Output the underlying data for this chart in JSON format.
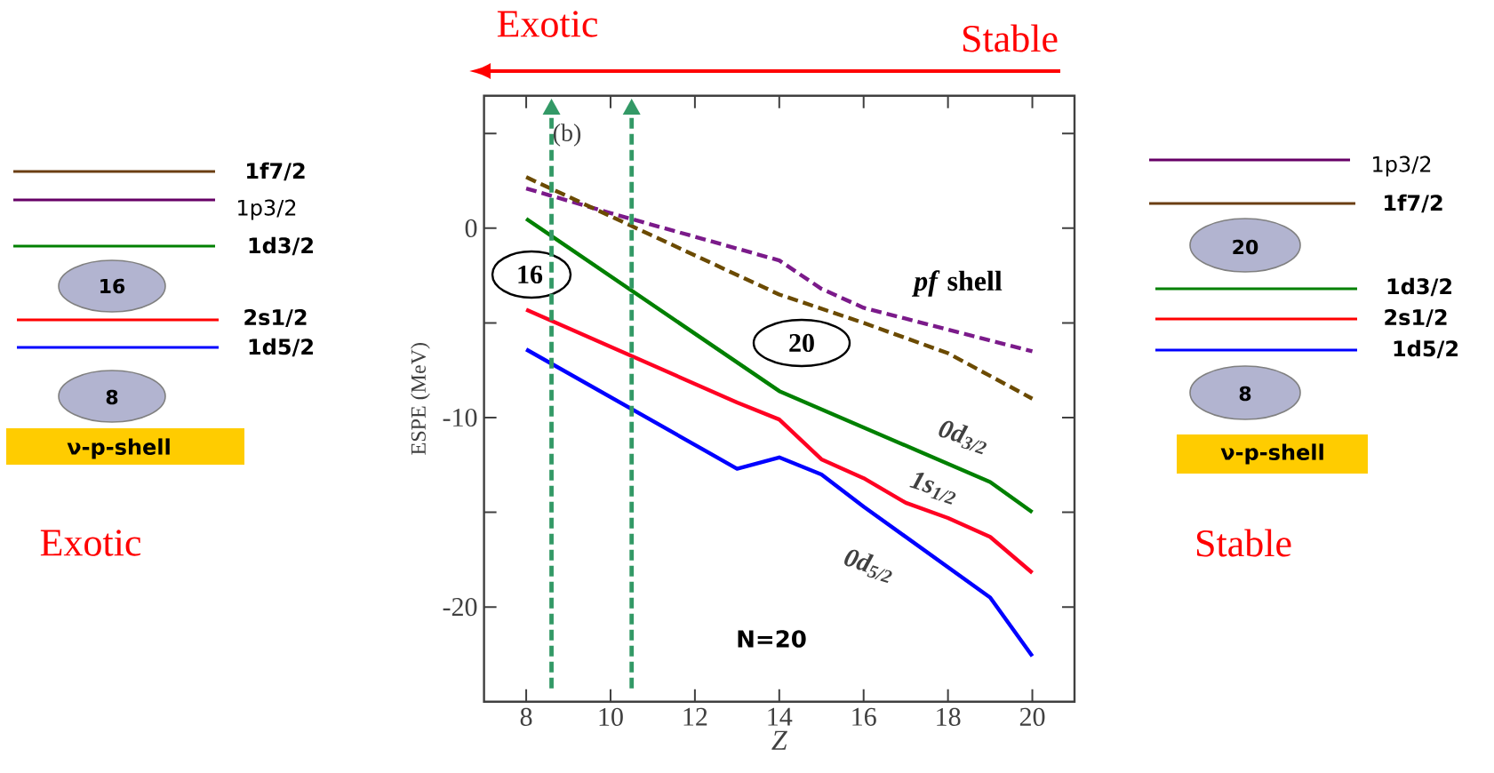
{
  "chart_data": {
    "type": "line",
    "xlabel": "Z",
    "ylabel": "ESPE (MeV)",
    "xlim": [
      7,
      21
    ],
    "ylim": [
      -25,
      7
    ],
    "xticks": [
      8,
      10,
      12,
      14,
      16,
      18,
      20
    ],
    "yticks": [
      {
        "value": 5,
        "label": null
      },
      0,
      {
        "value": -5,
        "label": null
      },
      -10,
      {
        "value": -15,
        "label": null
      },
      -20
    ],
    "series": [
      {
        "name": "0d$_{3/2}$",
        "color": "#008000",
        "x": [
          8,
          14,
          19,
          20
        ],
        "values": [
          0.5,
          -8.6,
          -13.4,
          -15.0
        ]
      },
      {
        "name": "1s$_{1/2}$",
        "color": "#ff0022",
        "x": [
          8,
          13,
          14,
          15,
          16,
          17,
          18,
          19,
          20
        ],
        "values": [
          -4.3,
          -9.2,
          -10.1,
          -12.2,
          -13.2,
          -14.5,
          -15.3,
          -16.3,
          -18.2
        ]
      },
      {
        "name": "0d$_{5/2}$",
        "color": "#0000ff",
        "x": [
          8,
          13,
          14,
          15,
          16,
          19,
          20
        ],
        "values": [
          -6.4,
          -12.7,
          -12.1,
          -13.0,
          -14.7,
          -19.5,
          -22.6
        ]
      },
      {
        "color": "#7b1a8a",
        "line_style": "dashed",
        "x": [
          8,
          10,
          14,
          15,
          16,
          20
        ],
        "values": [
          2.1,
          0.8,
          -1.7,
          -3.2,
          -4.2,
          -6.5
        ]
      },
      {
        "color": "#6b4a00",
        "line_style": "dashed",
        "x": [
          8,
          14,
          16,
          18,
          20
        ],
        "values": [
          2.7,
          -3.5,
          -5.0,
          -6.6,
          -9.0
        ]
      }
    ],
    "ref_lines": [
      {
        "axis": "x",
        "value": 8.6,
        "color": "#339966",
        "line_style": "dashed"
      },
      {
        "axis": "x",
        "value": 10.5,
        "color": "#339966",
        "line_style": "dashed"
      }
    ],
    "annotations": [
      "Exotic",
      "Stable",
      "(b)",
      "16",
      "20",
      "*pf* shell",
      "N=20",
      "1f7/2",
      "1p3/2",
      "1d3/2",
      "16",
      "2s1/2",
      "1d5/2",
      "8",
      "ν-p-shell",
      "Exotic",
      "1p3/2",
      "1f7/2",
      "20",
      "1d3/2",
      "2s1/2",
      "1d5/2",
      "8",
      "ν-p-shell",
      "Stable"
    ]
  }
}
